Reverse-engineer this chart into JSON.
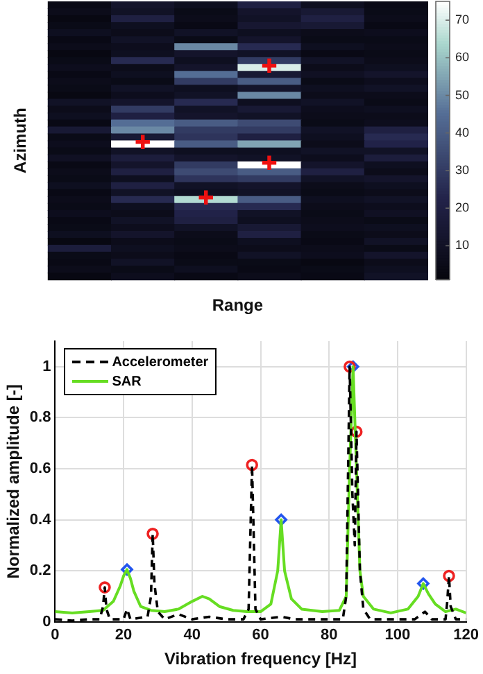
{
  "chart_data": [
    {
      "type": "heatmap",
      "xlabel": "Range",
      "ylabel": "Azimuth",
      "cell_labels": [
        [
          null,
          null,
          null,
          null,
          null,
          null
        ],
        [
          null,
          null,
          null,
          null,
          null,
          null
        ],
        [
          null,
          null,
          null,
          null,
          null,
          null
        ],
        [
          null,
          null,
          null,
          null,
          null,
          null
        ],
        [
          null,
          null,
          null,
          null,
          null,
          null
        ],
        [
          null,
          null,
          null,
          null,
          null,
          null
        ],
        [
          null,
          null,
          null,
          null,
          null,
          null
        ],
        [
          null,
          null,
          null,
          null,
          null,
          null
        ],
        [
          null,
          null,
          null,
          null,
          null,
          null
        ],
        [
          null,
          null,
          null,
          "✚",
          null,
          null
        ],
        [
          null,
          null,
          null,
          null,
          null,
          null
        ],
        [
          null,
          null,
          null,
          null,
          null,
          null
        ],
        [
          null,
          null,
          null,
          null,
          null,
          null
        ],
        [
          null,
          null,
          null,
          null,
          null,
          null
        ],
        [
          null,
          null,
          null,
          null,
          null,
          null
        ],
        [
          null,
          null,
          null,
          null,
          null,
          null
        ],
        [
          null,
          null,
          null,
          null,
          null,
          null
        ],
        [
          null,
          null,
          null,
          null,
          null,
          null
        ],
        [
          null,
          null,
          null,
          null,
          null,
          null
        ],
        [
          null,
          null,
          null,
          null,
          null,
          null
        ],
        [
          null,
          "✚",
          null,
          null,
          null,
          null
        ],
        [
          null,
          null,
          null,
          null,
          null,
          null
        ],
        [
          null,
          null,
          null,
          null,
          null,
          null
        ],
        [
          null,
          null,
          null,
          "✚",
          null,
          null
        ],
        [
          null,
          null,
          null,
          null,
          null,
          null
        ],
        [
          null,
          null,
          null,
          null,
          null,
          null
        ],
        [
          null,
          null,
          null,
          null,
          null,
          null
        ],
        [
          null,
          null,
          null,
          null,
          null,
          null
        ],
        [
          null,
          null,
          "✚",
          null,
          null,
          null
        ],
        [
          null,
          null,
          null,
          null,
          null,
          null
        ],
        [
          null,
          null,
          null,
          null,
          null,
          null
        ],
        [
          null,
          null,
          null,
          null,
          null,
          null
        ],
        [
          null,
          null,
          null,
          null,
          null,
          null
        ],
        [
          null,
          null,
          null,
          null,
          null,
          null
        ],
        [
          null,
          null,
          null,
          null,
          null,
          null
        ],
        [
          null,
          null,
          null,
          null,
          null,
          null
        ],
        [
          null,
          null,
          null,
          null,
          null,
          null
        ],
        [
          null,
          null,
          null,
          null,
          null,
          null
        ],
        [
          null,
          null,
          null,
          null,
          null,
          null
        ],
        [
          null,
          null,
          null,
          null,
          null,
          null
        ]
      ],
      "categories": [
        null,
        null,
        null,
        null,
        null,
        null
      ],
      "y_categories": [
        null,
        null,
        null,
        null,
        null,
        null,
        null,
        null,
        null,
        null,
        null,
        null,
        null,
        null,
        null,
        null,
        null,
        null,
        null,
        null,
        null,
        null,
        null,
        null,
        null,
        null,
        null,
        null,
        null,
        null,
        null,
        null,
        null,
        null,
        null,
        null,
        null,
        null,
        null,
        null
      ],
      "cells": [
        [
          4,
          12,
          8,
          20,
          8,
          4
        ],
        [
          6,
          10,
          5,
          12,
          15,
          5
        ],
        [
          3,
          20,
          6,
          10,
          20,
          6
        ],
        [
          5,
          8,
          4,
          14,
          15,
          4
        ],
        [
          8,
          6,
          10,
          8,
          6,
          7
        ],
        [
          4,
          10,
          5,
          12,
          5,
          5
        ],
        [
          6,
          7,
          50,
          25,
          8,
          6
        ],
        [
          3,
          8,
          12,
          10,
          4,
          5
        ],
        [
          5,
          25,
          8,
          30,
          10,
          6
        ],
        [
          7,
          6,
          12,
          70,
          6,
          8
        ],
        [
          4,
          8,
          45,
          15,
          9,
          12
        ],
        [
          6,
          5,
          30,
          40,
          5,
          7
        ],
        [
          5,
          10,
          8,
          12,
          8,
          10
        ],
        [
          3,
          7,
          10,
          50,
          6,
          6
        ],
        [
          10,
          12,
          25,
          8,
          10,
          5
        ],
        [
          6,
          30,
          10,
          15,
          7,
          8
        ],
        [
          8,
          20,
          12,
          10,
          6,
          6
        ],
        [
          4,
          45,
          40,
          35,
          5,
          7
        ],
        [
          15,
          50,
          30,
          30,
          10,
          20
        ],
        [
          5,
          15,
          28,
          20,
          8,
          25
        ],
        [
          7,
          75,
          40,
          55,
          6,
          22
        ],
        [
          5,
          10,
          8,
          8,
          10,
          10
        ],
        [
          9,
          18,
          12,
          10,
          7,
          18
        ],
        [
          4,
          12,
          30,
          75,
          12,
          8
        ],
        [
          6,
          20,
          35,
          40,
          20,
          6
        ],
        [
          5,
          8,
          28,
          30,
          10,
          12
        ],
        [
          8,
          20,
          10,
          12,
          6,
          8
        ],
        [
          4,
          10,
          8,
          10,
          5,
          6
        ],
        [
          6,
          25,
          65,
          40,
          8,
          10
        ],
        [
          5,
          8,
          25,
          25,
          6,
          7
        ],
        [
          7,
          6,
          22,
          10,
          5,
          9
        ],
        [
          4,
          10,
          20,
          8,
          6,
          5
        ],
        [
          5,
          7,
          10,
          15,
          7,
          8
        ],
        [
          8,
          12,
          6,
          20,
          5,
          6
        ],
        [
          3,
          6,
          5,
          8,
          4,
          10
        ],
        [
          18,
          8,
          6,
          6,
          6,
          5
        ],
        [
          5,
          6,
          4,
          10,
          7,
          12
        ],
        [
          4,
          10,
          5,
          5,
          3,
          6
        ],
        [
          6,
          5,
          8,
          4,
          5,
          8
        ],
        [
          3,
          7,
          4,
          6,
          4,
          10
        ]
      ],
      "clim": [
        1,
        75
      ],
      "cticks": [
        10,
        20,
        30,
        40,
        50,
        60,
        70
      ]
    },
    {
      "type": "line",
      "xlabel": "Vibration frequency [Hz]",
      "ylabel": "Normalized amplitude [-]",
      "xlim": [
        0,
        120
      ],
      "xticks": [
        0,
        20,
        40,
        60,
        80,
        100,
        120
      ],
      "ylim": [
        0,
        1.1
      ],
      "yticks": [
        0,
        0.2,
        0.4,
        0.6,
        0.8,
        1
      ],
      "grid": true,
      "legend": "top left",
      "series": [
        {
          "name": "Accelerometer",
          "color": "#000000",
          "line_style": "dashed",
          "marker": "none",
          "x": [
            0,
            5,
            10,
            13,
            14,
            14.5,
            15,
            16,
            20,
            21,
            22,
            27,
            28,
            28.5,
            29,
            30,
            32,
            36,
            40,
            45,
            50,
            55,
            56.5,
            57.5,
            58.5,
            60,
            66,
            70,
            80,
            84,
            85,
            86,
            86.8,
            87.5,
            88,
            89,
            90,
            92,
            100,
            105,
            108,
            110,
            114,
            114.5,
            115,
            115.5,
            117,
            120
          ],
          "values": [
            0.01,
            0.005,
            0.01,
            0.01,
            0.06,
            0.135,
            0.05,
            0.01,
            0.01,
            0.05,
            0.01,
            0.02,
            0.1,
            0.345,
            0.15,
            0.04,
            0.01,
            0.03,
            0.01,
            0.02,
            0.01,
            0.01,
            0.05,
            0.615,
            0.05,
            0.01,
            0.02,
            0.01,
            0.01,
            0.01,
            0.1,
            1,
            0.5,
            0.3,
            0.745,
            0.2,
            0.05,
            0.01,
            0.01,
            0.01,
            0.04,
            0.01,
            0.01,
            0.08,
            0.18,
            0.06,
            0.01,
            0.01
          ]
        },
        {
          "name": "SAR",
          "color": "#66dd22",
          "line_style": "solid",
          "marker": "none",
          "x": [
            0,
            5,
            10,
            14,
            17,
            19,
            20,
            21,
            22,
            23,
            25,
            28,
            32,
            36,
            40,
            43,
            45,
            48,
            52,
            56,
            60,
            63,
            65,
            66,
            67,
            69,
            72,
            78,
            83,
            85,
            86,
            87,
            88,
            89,
            90,
            93,
            98,
            103,
            106,
            107.5,
            109,
            111,
            114,
            117,
            120
          ],
          "values": [
            0.04,
            0.035,
            0.04,
            0.045,
            0.08,
            0.14,
            0.18,
            0.205,
            0.17,
            0.12,
            0.06,
            0.045,
            0.04,
            0.05,
            0.08,
            0.1,
            0.09,
            0.06,
            0.045,
            0.04,
            0.04,
            0.07,
            0.2,
            0.4,
            0.2,
            0.09,
            0.05,
            0.04,
            0.045,
            0.1,
            0.6,
            1,
            0.6,
            0.2,
            0.1,
            0.05,
            0.035,
            0.05,
            0.1,
            0.15,
            0.11,
            0.07,
            0.04,
            0.05,
            0.035
          ]
        },
        {
          "type": "scatter",
          "color": "#ee2222",
          "marker": "circle",
          "x": [
            14.5,
            28.5,
            57.5,
            86,
            88,
            115
          ],
          "values": [
            0.135,
            0.345,
            0.615,
            1,
            0.745,
            0.18
          ]
        },
        {
          "type": "scatter",
          "color": "#2255ee",
          "marker": "diamond",
          "x": [
            21,
            66,
            87,
            107.5
          ],
          "values": [
            0.205,
            0.4,
            1,
            0.15
          ]
        }
      ]
    }
  ]
}
